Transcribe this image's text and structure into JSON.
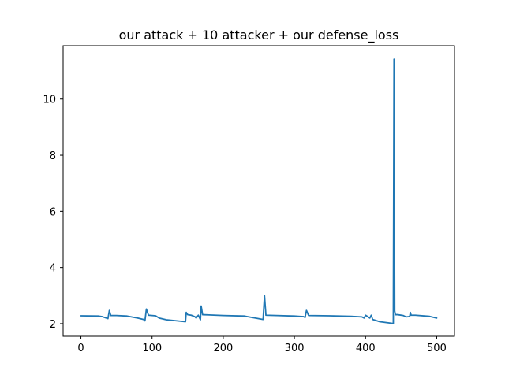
{
  "chart_data": {
    "type": "line",
    "title": "our attack + 10 attacker + our defense_loss",
    "xlabel": "",
    "ylabel": "",
    "xlim": [
      -25,
      525
    ],
    "ylim": [
      1.55,
      11.9
    ],
    "grid": false,
    "xticks": [
      0,
      100,
      200,
      300,
      400,
      500
    ],
    "yticks": [
      2,
      4,
      6,
      8,
      10
    ],
    "xtick_labels": [
      "0",
      "100",
      "200",
      "300",
      "400",
      "500"
    ],
    "ytick_labels": [
      "2",
      "4",
      "6",
      "8",
      "10"
    ],
    "line_color": "#1f77b4",
    "series": [
      {
        "x": [
          0,
          25,
          30,
          38,
          40,
          42,
          50,
          65,
          80,
          88,
          90,
          92,
          95,
          105,
          110,
          120,
          135,
          147,
          148,
          150,
          155,
          160,
          162,
          165,
          168,
          169,
          171,
          180,
          200,
          230,
          256,
          258,
          260,
          275,
          300,
          313,
          315,
          317,
          320,
          350,
          380,
          395,
          398,
          400,
          403,
          406,
          408,
          410,
          420,
          435,
          438,
          439,
          440,
          441,
          442,
          445,
          453,
          457,
          461,
          462,
          463,
          464,
          470,
          490,
          500
        ],
        "y": [
          2.28,
          2.27,
          2.25,
          2.18,
          2.47,
          2.29,
          2.29,
          2.27,
          2.2,
          2.15,
          2.1,
          2.52,
          2.3,
          2.28,
          2.2,
          2.14,
          2.1,
          2.07,
          2.4,
          2.32,
          2.3,
          2.25,
          2.2,
          2.3,
          2.14,
          2.63,
          2.32,
          2.31,
          2.29,
          2.27,
          2.15,
          3.0,
          2.3,
          2.29,
          2.27,
          2.25,
          2.22,
          2.47,
          2.29,
          2.28,
          2.26,
          2.24,
          2.2,
          2.3,
          2.25,
          2.2,
          2.3,
          2.15,
          2.07,
          2.02,
          2.01,
          2.0,
          11.42,
          2.45,
          2.32,
          2.32,
          2.29,
          2.24,
          2.25,
          2.25,
          2.4,
          2.3,
          2.3,
          2.26,
          2.2
        ]
      }
    ]
  }
}
